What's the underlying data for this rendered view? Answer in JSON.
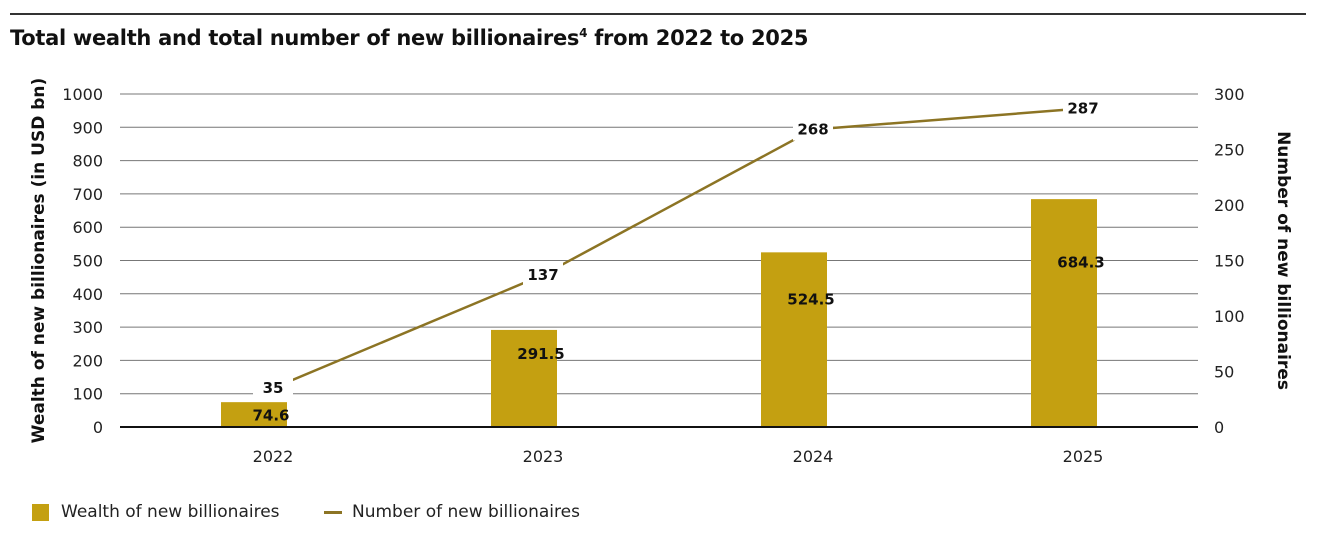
{
  "chart_data": {
    "type": "bar+line",
    "title": "Total wealth and total number of new billionaires",
    "title_superscript": "4",
    "title_suffix": " from 2022 to 2025",
    "categories": [
      "2022",
      "2023",
      "2024",
      "2025"
    ],
    "series": [
      {
        "name": "Wealth of new billionaires",
        "type": "bar",
        "axis": "left",
        "values": [
          74.6,
          291.5,
          524.5,
          684.3
        ],
        "color": "#C4A011"
      },
      {
        "name": "Number of new billionaires",
        "type": "line",
        "axis": "right",
        "values": [
          35,
          137,
          268,
          287
        ],
        "color": "#8C7424"
      }
    ],
    "ylabel": "Wealth of new billionaires (in USD bn)",
    "ylabel_right": "Number of new billionaires",
    "ylim": [
      0,
      1000
    ],
    "ylim_right": [
      0,
      300
    ],
    "yticks": [
      0,
      100,
      200,
      300,
      400,
      500,
      600,
      700,
      800,
      900,
      1000
    ],
    "yticks_right": [
      0,
      50,
      100,
      150,
      200,
      250,
      300
    ],
    "grid": true,
    "legend_placement": "bottom-left"
  }
}
